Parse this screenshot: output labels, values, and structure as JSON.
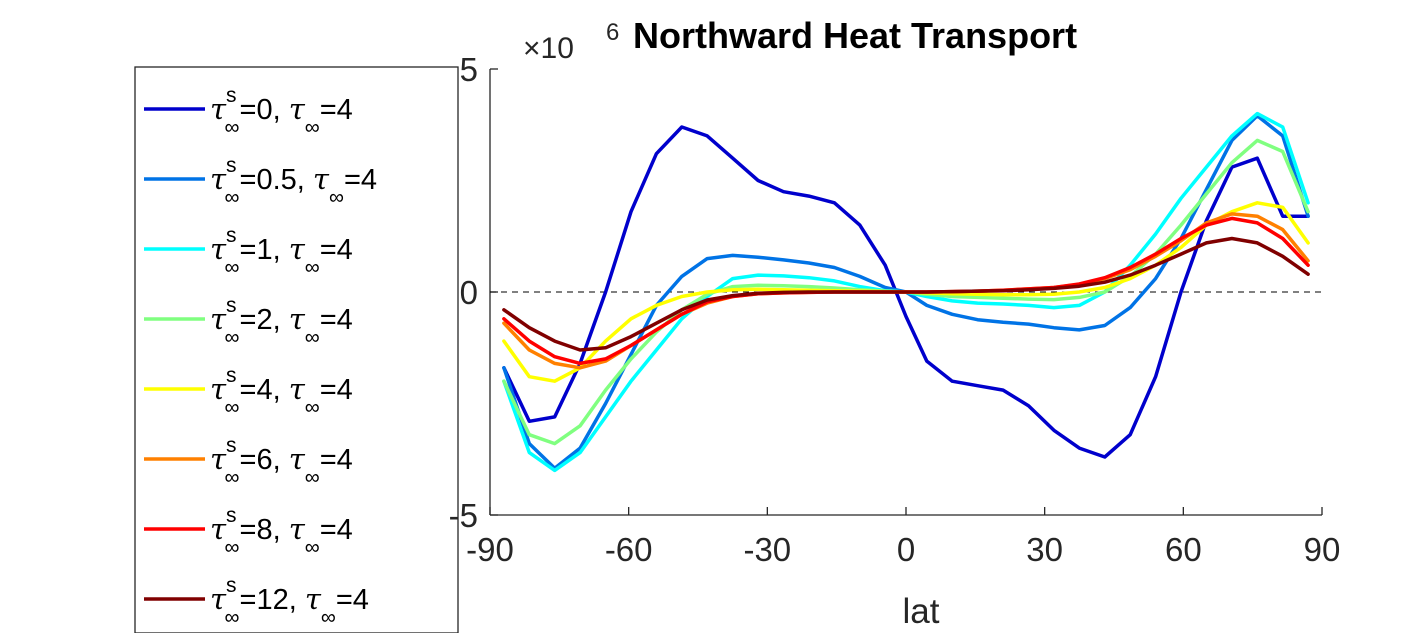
{
  "chart_data": {
    "type": "line",
    "title": "Northward Heat Transport",
    "xlabel": "lat",
    "ylabel": "",
    "y_exponent_base": "×10",
    "y_exponent_power": "6",
    "xlim": [
      -90,
      90
    ],
    "ylim": [
      -5,
      5
    ],
    "y_scale_factor": 1000000,
    "xticks": [
      -90,
      -60,
      -30,
      0,
      30,
      60,
      90
    ],
    "xtick_labels": [
      "-90",
      "-60",
      "-30",
      "0",
      "30",
      "60",
      "90"
    ],
    "yticks": [
      -5,
      0,
      5
    ],
    "ytick_labels": [
      "-5",
      "0",
      "5"
    ],
    "reference_line": {
      "y": 0,
      "style": "dashed",
      "color": "#000000"
    },
    "grid": false,
    "legend_position": "left, outside plot",
    "x": [
      -87,
      -81.5,
      -76,
      -70.5,
      -65,
      -59.5,
      -54,
      -48.5,
      -43,
      -37.5,
      -32,
      -26.5,
      -21,
      -15.5,
      -10,
      -4.5,
      0,
      4.5,
      10,
      15.5,
      21,
      26.5,
      32,
      37.5,
      43,
      48.5,
      54,
      59.5,
      65,
      70.5,
      76,
      81.5,
      87
    ],
    "series": [
      {
        "color": "#0000cc",
        "legend_parts": [
          "=0, ",
          "=4"
        ],
        "values": [
          -1.7,
          -2.9,
          -2.8,
          -1.6,
          0.0,
          1.8,
          3.1,
          3.7,
          3.5,
          3.0,
          2.5,
          2.25,
          2.15,
          2.0,
          1.5,
          0.6,
          -0.55,
          -1.55,
          -2.0,
          -2.1,
          -2.2,
          -2.55,
          -3.1,
          -3.5,
          -3.7,
          -3.2,
          -1.9,
          0.0,
          1.6,
          2.8,
          3.0,
          1.7,
          1.7
        ]
      },
      {
        "color": "#0073e6",
        "legend_parts": [
          "=0.5, ",
          "=4"
        ],
        "values": [
          -1.7,
          -3.4,
          -3.95,
          -3.5,
          -2.5,
          -1.4,
          -0.3,
          0.35,
          0.75,
          0.82,
          0.78,
          0.72,
          0.65,
          0.55,
          0.35,
          0.1,
          0.0,
          -0.3,
          -0.5,
          -0.62,
          -0.68,
          -0.72,
          -0.8,
          -0.85,
          -0.75,
          -0.35,
          0.3,
          1.2,
          2.3,
          3.4,
          3.95,
          3.5,
          1.7
        ]
      },
      {
        "color": "#00ffff",
        "legend_parts": [
          "=1, ",
          "=4"
        ],
        "values": [
          -2.0,
          -3.6,
          -4.0,
          -3.6,
          -2.8,
          -2.0,
          -1.3,
          -0.6,
          -0.1,
          0.3,
          0.38,
          0.36,
          0.32,
          0.25,
          0.12,
          0.03,
          0.0,
          -0.1,
          -0.2,
          -0.25,
          -0.27,
          -0.3,
          -0.35,
          -0.3,
          0.0,
          0.6,
          1.3,
          2.1,
          2.8,
          3.5,
          4.0,
          3.7,
          2.0
        ]
      },
      {
        "color": "#80ff80",
        "legend_parts": [
          "=2, ",
          "=4"
        ],
        "values": [
          -2.0,
          -3.2,
          -3.4,
          -3.0,
          -2.2,
          -1.5,
          -0.9,
          -0.4,
          -0.05,
          0.12,
          0.15,
          0.14,
          0.12,
          0.09,
          0.05,
          0.02,
          0.0,
          -0.05,
          -0.1,
          -0.12,
          -0.14,
          -0.16,
          -0.17,
          -0.12,
          0.0,
          0.35,
          0.85,
          1.5,
          2.2,
          2.9,
          3.4,
          3.15,
          1.8
        ]
      },
      {
        "color": "#ffff00",
        "legend_parts": [
          "=4, ",
          "=4"
        ],
        "values": [
          -1.1,
          -1.9,
          -2.0,
          -1.7,
          -1.1,
          -0.6,
          -0.3,
          -0.1,
          0.0,
          0.05,
          0.06,
          0.05,
          0.04,
          0.03,
          0.02,
          0.01,
          0.0,
          -0.02,
          -0.04,
          -0.05,
          -0.06,
          -0.06,
          -0.05,
          0.0,
          0.1,
          0.3,
          0.6,
          1.0,
          1.5,
          1.8,
          2.0,
          1.9,
          1.1
        ]
      },
      {
        "color": "#ff8000",
        "legend_parts": [
          "=6, ",
          "=4"
        ],
        "values": [
          -0.7,
          -1.3,
          -1.6,
          -1.7,
          -1.55,
          -1.2,
          -0.85,
          -0.5,
          -0.25,
          -0.1,
          -0.04,
          -0.02,
          -0.01,
          0.0,
          0.0,
          0.0,
          0.0,
          0.0,
          0.01,
          0.02,
          0.04,
          0.07,
          0.1,
          0.17,
          0.3,
          0.5,
          0.8,
          1.15,
          1.55,
          1.75,
          1.7,
          1.4,
          0.7
        ]
      },
      {
        "color": "#ff0000",
        "legend_parts": [
          "=8, ",
          "=4"
        ],
        "values": [
          -0.6,
          -1.1,
          -1.45,
          -1.6,
          -1.5,
          -1.2,
          -0.85,
          -0.5,
          -0.22,
          -0.1,
          -0.04,
          -0.02,
          -0.01,
          0.0,
          0.0,
          0.0,
          0.0,
          0.0,
          0.01,
          0.02,
          0.04,
          0.07,
          0.1,
          0.18,
          0.32,
          0.55,
          0.85,
          1.2,
          1.5,
          1.65,
          1.55,
          1.2,
          0.6
        ]
      },
      {
        "color": "#800000",
        "legend_parts": [
          "=12, ",
          "=4"
        ],
        "values": [
          -0.4,
          -0.8,
          -1.1,
          -1.3,
          -1.25,
          -1.0,
          -0.7,
          -0.4,
          -0.18,
          -0.08,
          -0.03,
          -0.01,
          0.0,
          0.0,
          0.0,
          0.0,
          0.0,
          0.0,
          0.01,
          0.02,
          0.03,
          0.05,
          0.08,
          0.13,
          0.22,
          0.38,
          0.6,
          0.85,
          1.1,
          1.2,
          1.1,
          0.8,
          0.4
        ]
      }
    ]
  }
}
